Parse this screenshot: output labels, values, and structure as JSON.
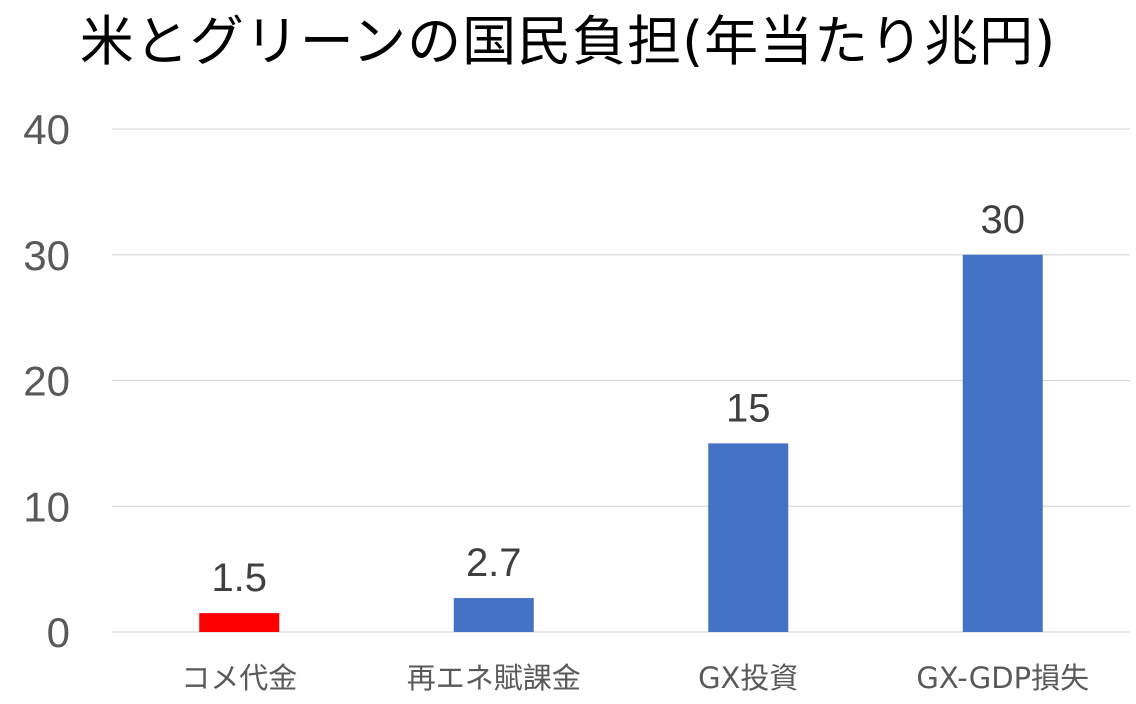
{
  "chart_data": {
    "type": "bar",
    "title": "米とグリーンの国民負担(年当たり兆円)",
    "categories": [
      "コメ代金",
      "再エネ賦課金",
      "GX投資",
      "GX-GDP損失"
    ],
    "values": [
      1.5,
      2.7,
      15,
      30
    ],
    "value_labels": [
      "1.5",
      "2.7",
      "15",
      "30"
    ],
    "bar_colors": [
      "#ff0000",
      "#4472c4",
      "#4472c4",
      "#4472c4"
    ],
    "ylim": [
      0,
      40
    ],
    "yticks": [
      0,
      10,
      20,
      30,
      40
    ],
    "xlabel": "",
    "ylabel": "",
    "grid": true,
    "legend": "none"
  }
}
